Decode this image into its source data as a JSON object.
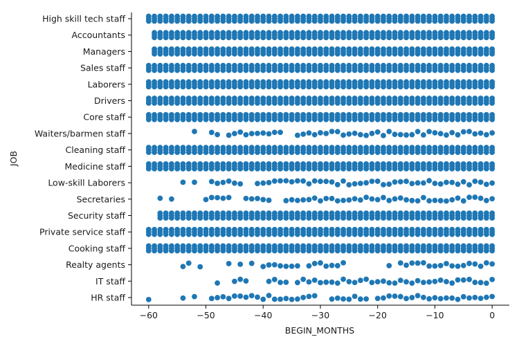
{
  "chart_data": {
    "type": "scatter",
    "title": "",
    "xlabel": "BEGIN_MONTHS",
    "ylabel": "JOB",
    "xlim": [
      -63,
      3
    ],
    "x_ticks": [
      -60,
      -50,
      -40,
      -30,
      -20,
      -10,
      0
    ],
    "x_tick_labels": [
      "−60",
      "−50",
      "−40",
      "−30",
      "−20",
      "−10",
      "0"
    ],
    "grid": false,
    "legend": "none",
    "color": "#1f77b4",
    "categories": [
      "High skill tech staff",
      "Accountants",
      "Managers",
      "Sales staff",
      "Laborers",
      "Drivers",
      "Core staff",
      "Waiters/barmen staff",
      "Cleaning staff",
      "Medicine staff",
      "Low-skill Laborers",
      "Secretaries",
      "Security staff",
      "Private service staff",
      "Cooking staff",
      "Realty agents",
      "IT staff",
      "HR staff"
    ],
    "series": [
      {
        "category": "High skill tech staff",
        "x_range": [
          -60,
          0
        ],
        "missing": []
      },
      {
        "category": "Accountants",
        "x_range": [
          -59,
          0
        ],
        "missing": []
      },
      {
        "category": "Managers",
        "x_range": [
          -59,
          0
        ],
        "missing": []
      },
      {
        "category": "Sales staff",
        "x_range": [
          -60,
          0
        ],
        "missing": []
      },
      {
        "category": "Laborers",
        "x_range": [
          -60,
          0
        ],
        "missing": []
      },
      {
        "category": "Drivers",
        "x_range": [
          -60,
          0
        ],
        "missing": []
      },
      {
        "category": "Core staff",
        "x_range": [
          -60,
          0
        ],
        "missing": []
      },
      {
        "category": "Waiters/barmen staff",
        "x_range": [
          -52,
          0
        ],
        "missing": [
          -51,
          -50,
          -47,
          -36,
          -35
        ]
      },
      {
        "category": "Cleaning staff",
        "x_range": [
          -60,
          0
        ],
        "missing": []
      },
      {
        "category": "Medicine staff",
        "x_range": [
          -60,
          0
        ],
        "missing": []
      },
      {
        "category": "Low-skill Laborers",
        "x_range": [
          -54,
          0
        ],
        "missing": [
          -53,
          -51,
          -50,
          -43,
          -42
        ]
      },
      {
        "category": "Secretaries",
        "x_range": [
          -58,
          0
        ],
        "missing": [
          -57,
          -55,
          -54,
          -53,
          -52,
          -51,
          -45,
          -44,
          -38,
          -37
        ]
      },
      {
        "category": "Security staff",
        "x_range": [
          -58,
          0
        ],
        "missing": []
      },
      {
        "category": "Private service staff",
        "x_range": [
          -60,
          0
        ],
        "missing": []
      },
      {
        "category": "Cooking staff",
        "x_range": [
          -60,
          0
        ],
        "missing": []
      },
      {
        "category": "Realty agents",
        "x_range": [
          -54,
          0
        ],
        "missing": [
          -52,
          -50,
          -49,
          -48,
          -47,
          -45,
          -43,
          -41,
          -33,
          -25,
          -24,
          -23,
          -22,
          -21,
          -20,
          -19,
          -17
        ]
      },
      {
        "category": "IT staff",
        "x_range": [
          -48,
          0
        ],
        "missing": [
          -47,
          -46,
          -42,
          -41,
          -40,
          -35
        ]
      },
      {
        "category": "HR staff",
        "x_range": [
          -60,
          0
        ],
        "missing": [
          -59,
          -58,
          -57,
          -56,
          -55,
          -53,
          -51,
          -50,
          -30,
          -29,
          -21
        ]
      }
    ]
  }
}
